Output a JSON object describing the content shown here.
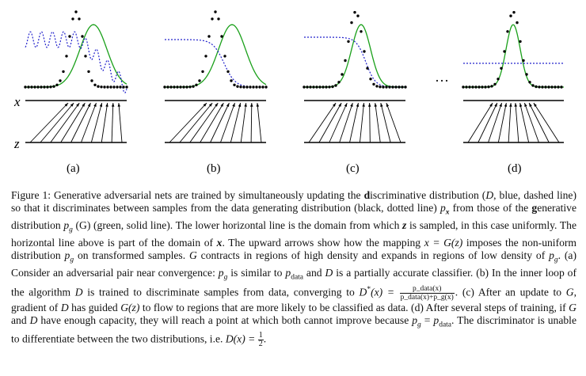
{
  "figure": {
    "axis_labels": {
      "x": "x",
      "z": "z"
    },
    "panel_labels": [
      "(a)",
      "(b)",
      "(c)",
      "(d)"
    ],
    "ellipsis": "···",
    "colors": {
      "data": "#000000",
      "generator": "#1aa01a",
      "discriminator": "#2323cc",
      "axis": "#000000"
    }
  },
  "caption": {
    "p1": "Figure 1: Generative adversarial nets are trained by simultaneously updating the ",
    "p2": "d",
    "p3": "iscriminative distribution (",
    "p4": "D",
    "p5": ", blue, dashed line) so that it discriminates between samples from the data generating distribution (black, dotted line) ",
    "p6": "p",
    "p7": "x",
    "p8": " from those of the ",
    "p9": "g",
    "p10": "enerative distribution ",
    "p11": "p",
    "p12": "g",
    "p13": " (G) (green, solid line). The lower horizontal line is the domain from which ",
    "p14": "z",
    "p15": " is sampled, in this case uniformly. The horizontal line above is part of the domain of ",
    "p16": "x",
    "p17": ". The upward arrows show how the mapping ",
    "p18": "x = G(z)",
    "p19": " imposes the non-uniform distribution ",
    "p20": "p",
    "p21": "g",
    "p22": " on transformed samples. ",
    "p23": "G",
    "p24": " contracts in regions of high density and expands in regions of low density of ",
    "p25": "p",
    "p26": "g",
    "p27": ". (a) Consider an adversarial pair near convergence: ",
    "p28": "p",
    "p29": "g",
    "p30": " is similar to ",
    "p31": "p",
    "p32": "data",
    "p33": " and ",
    "p34": "D",
    "p35": " is a partially accurate classifier. (b) In the inner loop of the algorithm ",
    "p36": "D",
    "p37": " is trained to discriminate samples from data, converging to ",
    "p38": "D",
    "p39": "*",
    "p40": "(x) =",
    "frac_num": "p_data(x)",
    "frac_den": "p_data(x)+p_g(x)",
    "p41": ". (c) After an update to ",
    "p42": "G",
    "p43": ", gradient of ",
    "p44": "D",
    "p45": " has guided ",
    "p46": "G(z)",
    "p47": " to flow to regions that are more likely to be classified as data. (d) After several steps of training, if ",
    "p48": "G",
    "p49": " and ",
    "p50": "D",
    "p51": " have enough capacity, they will reach a point at which both cannot improve because ",
    "p52": "p",
    "p53": "g",
    "p54": " = ",
    "p55": "p",
    "p56": "data",
    "p57": ". The discriminator is unable to differentiate between the two distributions, i.e. ",
    "p58": "D(x) = ",
    "half_num": "1",
    "half_den": "2",
    "p59": "."
  }
}
